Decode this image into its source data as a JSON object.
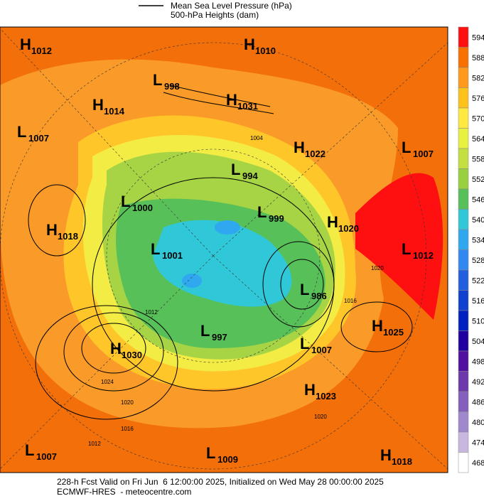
{
  "legend": {
    "items": [
      "Mean Sea Level Pressure (hPa)",
      "500-hPa Heights (dam)"
    ]
  },
  "centers": [
    {
      "kind": "H",
      "value": 1012
    },
    {
      "kind": "H",
      "value": 1010
    },
    {
      "kind": "L",
      "value": 998
    },
    {
      "kind": "H",
      "value": 1014
    },
    {
      "kind": "H",
      "value": 1031
    },
    {
      "kind": "L",
      "value": 1007
    },
    {
      "kind": "H",
      "value": 1022
    },
    {
      "kind": "L",
      "value": 1007
    },
    {
      "kind": "L",
      "value": 994
    },
    {
      "kind": "L",
      "value": 1000
    },
    {
      "kind": "L",
      "value": 999
    },
    {
      "kind": "H",
      "value": 1018
    },
    {
      "kind": "H",
      "value": 1020
    },
    {
      "kind": "L",
      "value": 1001
    },
    {
      "kind": "L",
      "value": 1012
    },
    {
      "kind": "L",
      "value": 986
    },
    {
      "kind": "H",
      "value": 1025
    },
    {
      "kind": "L",
      "value": 997
    },
    {
      "kind": "L",
      "value": 1007
    },
    {
      "kind": "H",
      "value": 1030
    },
    {
      "kind": "H",
      "value": 1023
    },
    {
      "kind": "L",
      "value": 1007
    },
    {
      "kind": "L",
      "value": 1009
    },
    {
      "kind": "H",
      "value": 1018
    }
  ],
  "contour_labels": [
    1024,
    1020,
    1016,
    1012,
    1020,
    1016,
    1020,
    1004,
    1012
  ],
  "colorbar": {
    "ticks": [
      594,
      588,
      582,
      576,
      570,
      564,
      558,
      552,
      546,
      540,
      534,
      528,
      522,
      516,
      510,
      504,
      498,
      492,
      486,
      480,
      474,
      468
    ],
    "colors": [
      "#ff1010",
      "#f77000",
      "#ff9a1a",
      "#ffc21a",
      "#ffe840",
      "#e8f040",
      "#c4e040",
      "#98d040",
      "#58c058",
      "#30c8d8",
      "#30a8f0",
      "#3088f0",
      "#2060e0",
      "#1040d0",
      "#0020c0",
      "#2000a0",
      "#5010a0",
      "#6c38ac",
      "#8460bc",
      "#a088cc",
      "#c8b8e0",
      "#ffffff"
    ]
  },
  "footer": {
    "line1": "228-h Fcst Valid on Fri Jun  6 12:00:00 2025, Initialized on Wed May 28 00:00:00 2025",
    "line2": "ECMWF-HRES  - meteocentre.com"
  }
}
